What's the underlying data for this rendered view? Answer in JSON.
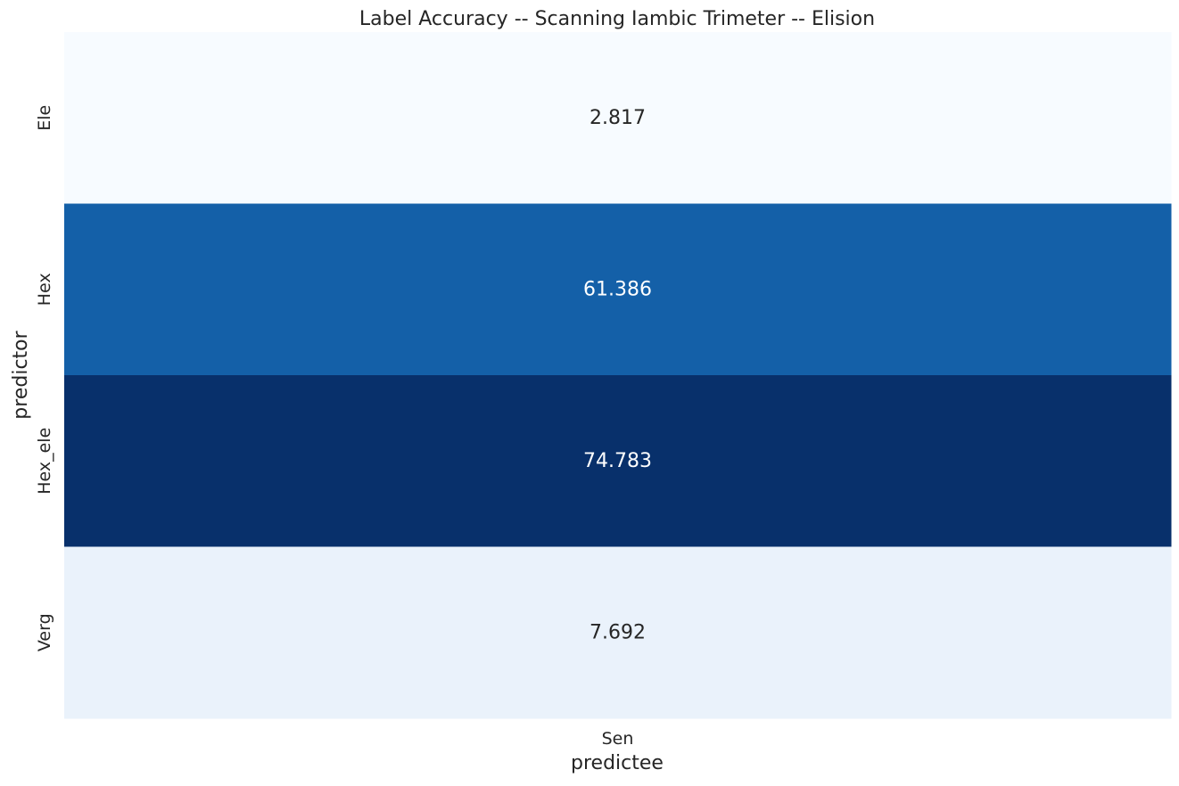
{
  "chart_data": {
    "type": "heatmap",
    "title": "Label Accuracy -- Scanning Iambic Trimeter -- Elision",
    "xlabel": "predictee",
    "ylabel": "predictor",
    "x_categories": [
      "Sen"
    ],
    "y_categories": [
      "Ele",
      "Hex",
      "Hex_ele",
      "Verg"
    ],
    "values": [
      [
        2.817
      ],
      [
        61.386
      ],
      [
        74.783
      ],
      [
        7.692
      ]
    ],
    "value_labels": [
      [
        "2.817"
      ],
      [
        "61.386"
      ],
      [
        "74.783"
      ],
      [
        "7.692"
      ]
    ],
    "colormap": "Blues",
    "colorbar": false,
    "cell_colors": [
      "#f7fbff",
      "#1460a8",
      "#08306b",
      "#eaf2fb"
    ],
    "annotation_colors": [
      "#262626",
      "#ffffff",
      "#ffffff",
      "#262626"
    ]
  }
}
